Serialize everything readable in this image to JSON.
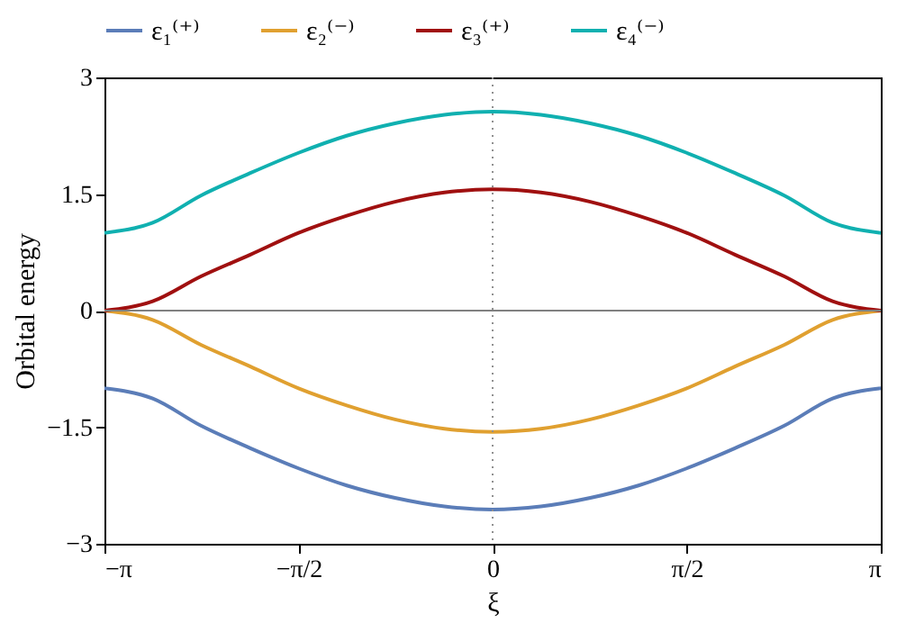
{
  "chart_data": {
    "type": "line",
    "xlabel": "ξ",
    "ylabel": "Orbital energy",
    "x": [
      -3.14,
      -2.75,
      -2.36,
      -1.96,
      -1.57,
      -1.18,
      -0.79,
      -0.39,
      0,
      0.39,
      0.79,
      1.18,
      1.57,
      1.96,
      2.36,
      2.75,
      3.14
    ],
    "series": [
      {
        "name": "ε₁⁽⁺⁾",
        "color": "#5b7db8",
        "values": [
          -1.0,
          -1.13,
          -1.48,
          -1.77,
          -2.03,
          -2.25,
          -2.41,
          -2.52,
          -2.56,
          -2.52,
          -2.41,
          -2.25,
          -2.03,
          -1.77,
          -1.48,
          -1.13,
          -1.0
        ]
      },
      {
        "name": "ε₂⁽⁻⁾",
        "color": "#e0a030",
        "values": [
          0,
          -0.12,
          -0.44,
          -0.72,
          -1.0,
          -1.22,
          -1.4,
          -1.52,
          -1.56,
          -1.52,
          -1.4,
          -1.22,
          -1.0,
          -0.72,
          -0.44,
          -0.12,
          0
        ]
      },
      {
        "name": "ε₃⁽⁺⁾",
        "color": "#a01010",
        "values": [
          0,
          0.12,
          0.44,
          0.72,
          1.0,
          1.22,
          1.4,
          1.52,
          1.56,
          1.52,
          1.4,
          1.22,
          1.0,
          0.72,
          0.44,
          0.12,
          0
        ]
      },
      {
        "name": "ε₄⁽⁻⁾",
        "color": "#10b0b0",
        "values": [
          1.0,
          1.13,
          1.48,
          1.77,
          2.03,
          2.25,
          2.41,
          2.52,
          2.56,
          2.52,
          2.41,
          2.25,
          2.03,
          1.77,
          1.48,
          1.13,
          1.0
        ]
      }
    ],
    "xlim": [
      -3.14,
      3.14
    ],
    "xticks": [
      {
        "value": -3.14,
        "label": "−π"
      },
      {
        "value": -1.57,
        "label": "−π/2"
      },
      0,
      {
        "value": 1.57,
        "label": "π/2"
      },
      {
        "value": 3.14,
        "label": "π"
      }
    ],
    "ylim": [
      -3,
      3
    ],
    "yticks": [
      {
        "value": -3,
        "label": "−3"
      },
      {
        "value": -1.5,
        "label": "−1.5"
      },
      0,
      1.5,
      3
    ],
    "ref_lines": [
      {
        "axis": "y",
        "value": 0,
        "color": "#808080",
        "line_style": "solid"
      },
      {
        "axis": "x",
        "value": 0,
        "color": "#909090",
        "line_style": "dotted"
      }
    ],
    "legend": "top",
    "grid": false,
    "marker": "none",
    "line_style": "solid"
  }
}
